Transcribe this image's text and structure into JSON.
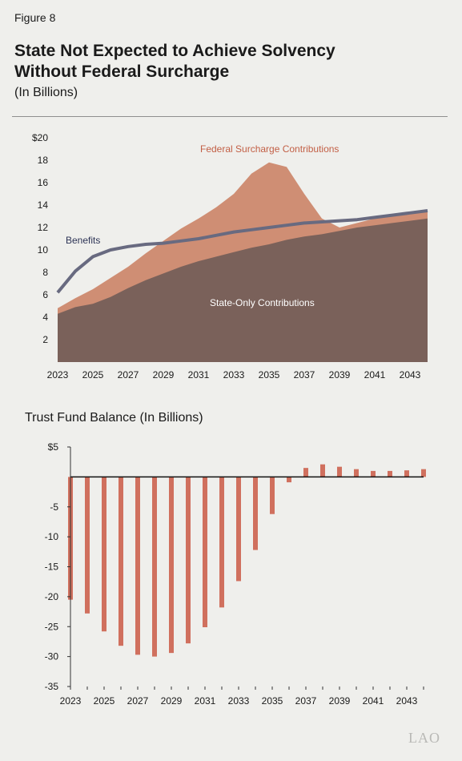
{
  "figure_label": "Figure 8",
  "title_line1": "State Not Expected to Achieve Solvency",
  "title_line2": "Without Federal Surcharge",
  "subtitle": "(In Billions)",
  "logo": "LAO",
  "colors": {
    "state_only": "#7a615a",
    "federal": "#cf8e74",
    "benefits": "#686a80",
    "bars": "#d0705e",
    "federal_label": "#c25f45",
    "benefits_label": "#2d3456",
    "state_label": "#ffffff"
  },
  "chart_data": [
    {
      "type": "area",
      "x": [
        2023,
        2024,
        2025,
        2026,
        2027,
        2028,
        2029,
        2030,
        2031,
        2032,
        2033,
        2034,
        2035,
        2036,
        2037,
        2038,
        2039,
        2040,
        2041,
        2042,
        2043,
        2044
      ],
      "x_tick_labels": [
        "2023",
        "2025",
        "2027",
        "2029",
        "2031",
        "2033",
        "2035",
        "2037",
        "2039",
        "2041",
        "2043"
      ],
      "y_tick_labels": [
        "$20",
        "18",
        "16",
        "14",
        "12",
        "10",
        "8",
        "6",
        "4",
        "2"
      ],
      "ylim": [
        0,
        20
      ],
      "series": [
        {
          "name": "State-Only Contributions",
          "kind": "area",
          "values": [
            4.3,
            4.9,
            5.2,
            5.8,
            6.6,
            7.3,
            7.9,
            8.5,
            9.0,
            9.4,
            9.8,
            10.2,
            10.5,
            10.9,
            11.2,
            11.4,
            11.7,
            12.0,
            12.2,
            12.4,
            12.6,
            12.8
          ]
        },
        {
          "name": "Federal Surcharge Contributions",
          "kind": "area",
          "values": [
            0.5,
            0.8,
            1.3,
            1.7,
            1.9,
            2.4,
            2.9,
            3.4,
            3.8,
            4.4,
            5.2,
            6.6,
            7.3,
            6.5,
            3.8,
            1.4,
            0.3,
            0.4,
            0.6,
            0.6,
            0.6,
            0.6
          ]
        },
        {
          "name": "Benefits",
          "kind": "line",
          "values": [
            6.2,
            8.1,
            9.4,
            10.0,
            10.3,
            10.5,
            10.6,
            10.8,
            11.0,
            11.3,
            11.6,
            11.8,
            12.0,
            12.2,
            12.4,
            12.5,
            12.6,
            12.7,
            12.9,
            13.1,
            13.3,
            13.5
          ]
        }
      ]
    },
    {
      "type": "bar",
      "title": "Trust Fund Balance (In Billions)",
      "categories": [
        2023,
        2024,
        2025,
        2026,
        2027,
        2028,
        2029,
        2030,
        2031,
        2032,
        2033,
        2034,
        2035,
        2036,
        2037,
        2038,
        2039,
        2040,
        2041,
        2042,
        2043,
        2044
      ],
      "values": [
        -20.5,
        -22.8,
        -25.8,
        -28.2,
        -29.7,
        -30.0,
        -29.4,
        -27.8,
        -25.1,
        -21.8,
        -17.4,
        -12.2,
        -6.2,
        -0.9,
        1.5,
        2.1,
        1.7,
        1.3,
        1.0,
        1.0,
        1.1,
        1.3
      ],
      "x_tick_labels": [
        "2023",
        "2025",
        "2027",
        "2029",
        "2031",
        "2033",
        "2035",
        "2037",
        "2039",
        "2041",
        "2043"
      ],
      "y_tick_labels": [
        "$5",
        "-5",
        "-10",
        "-15",
        "-20",
        "-25",
        "-30",
        "-35"
      ],
      "ylim": [
        -35,
        5
      ]
    }
  ]
}
